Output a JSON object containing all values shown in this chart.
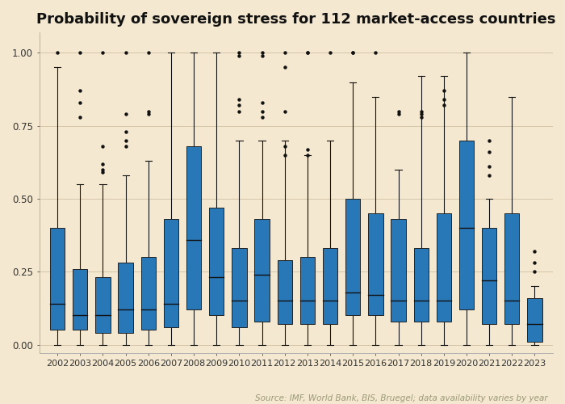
{
  "title": "Probability of sovereign stress for 112 market-access countries",
  "source_text": "Source: IMF, World Bank, BIS, Bruegel; data availability varies by year",
  "background_color": "#f5e8d0",
  "box_color": "#2878b8",
  "box_edge_color": "#222222",
  "median_color": "#111111",
  "whisker_color": "#111111",
  "flier_color": "#111111",
  "years": [
    2002,
    2003,
    2004,
    2005,
    2006,
    2007,
    2008,
    2009,
    2010,
    2011,
    2012,
    2013,
    2014,
    2015,
    2016,
    2017,
    2018,
    2019,
    2020,
    2021,
    2022,
    2023
  ],
  "box_stats": [
    {
      "year": 2002,
      "q1": 0.05,
      "median": 0.14,
      "q3": 0.4,
      "whislo": 0.0,
      "whishi": 0.95,
      "fliers": [
        1.0
      ]
    },
    {
      "year": 2003,
      "q1": 0.05,
      "median": 0.1,
      "q3": 0.26,
      "whislo": 0.0,
      "whishi": 0.55,
      "fliers": [
        1.0,
        0.87,
        0.83,
        0.78
      ]
    },
    {
      "year": 2004,
      "q1": 0.04,
      "median": 0.1,
      "q3": 0.23,
      "whislo": 0.0,
      "whishi": 0.55,
      "fliers": [
        1.0,
        0.68,
        0.62,
        0.6,
        0.59
      ]
    },
    {
      "year": 2005,
      "q1": 0.04,
      "median": 0.12,
      "q3": 0.28,
      "whislo": 0.0,
      "whishi": 0.58,
      "fliers": [
        1.0,
        0.79,
        0.73,
        0.7,
        0.68
      ]
    },
    {
      "year": 2006,
      "q1": 0.05,
      "median": 0.12,
      "q3": 0.3,
      "whislo": 0.0,
      "whishi": 0.63,
      "fliers": [
        1.0,
        0.8,
        0.79
      ]
    },
    {
      "year": 2007,
      "q1": 0.06,
      "median": 0.14,
      "q3": 0.43,
      "whislo": 0.0,
      "whishi": 1.0,
      "fliers": []
    },
    {
      "year": 2008,
      "q1": 0.12,
      "median": 0.36,
      "q3": 0.68,
      "whislo": 0.0,
      "whishi": 1.0,
      "fliers": []
    },
    {
      "year": 2009,
      "q1": 0.1,
      "median": 0.23,
      "q3": 0.47,
      "whislo": 0.0,
      "whishi": 1.0,
      "fliers": []
    },
    {
      "year": 2010,
      "q1": 0.06,
      "median": 0.15,
      "q3": 0.33,
      "whislo": 0.0,
      "whishi": 0.7,
      "fliers": [
        1.0,
        0.99,
        0.84,
        0.82,
        0.8
      ]
    },
    {
      "year": 2011,
      "q1": 0.08,
      "median": 0.24,
      "q3": 0.43,
      "whislo": 0.0,
      "whishi": 0.7,
      "fliers": [
        1.0,
        0.99,
        0.83,
        0.8,
        0.78
      ]
    },
    {
      "year": 2012,
      "q1": 0.07,
      "median": 0.15,
      "q3": 0.29,
      "whislo": 0.0,
      "whishi": 0.7,
      "fliers": [
        1.0,
        0.95,
        0.8,
        0.68,
        0.65
      ]
    },
    {
      "year": 2013,
      "q1": 0.07,
      "median": 0.15,
      "q3": 0.3,
      "whislo": 0.0,
      "whishi": 0.65,
      "fliers": [
        1.0,
        1.0,
        0.67,
        0.65
      ]
    },
    {
      "year": 2014,
      "q1": 0.07,
      "median": 0.15,
      "q3": 0.33,
      "whislo": 0.0,
      "whishi": 0.7,
      "fliers": [
        1.0
      ]
    },
    {
      "year": 2015,
      "q1": 0.1,
      "median": 0.18,
      "q3": 0.5,
      "whislo": 0.0,
      "whishi": 0.9,
      "fliers": [
        1.0,
        1.0
      ]
    },
    {
      "year": 2016,
      "q1": 0.1,
      "median": 0.17,
      "q3": 0.45,
      "whislo": 0.0,
      "whishi": 0.85,
      "fliers": [
        1.0
      ]
    },
    {
      "year": 2017,
      "q1": 0.08,
      "median": 0.15,
      "q3": 0.43,
      "whislo": 0.0,
      "whishi": 0.6,
      "fliers": [
        0.8,
        0.79
      ]
    },
    {
      "year": 2018,
      "q1": 0.08,
      "median": 0.15,
      "q3": 0.33,
      "whislo": 0.0,
      "whishi": 0.92,
      "fliers": [
        0.8,
        0.79,
        0.78
      ]
    },
    {
      "year": 2019,
      "q1": 0.08,
      "median": 0.15,
      "q3": 0.45,
      "whislo": 0.0,
      "whishi": 0.92,
      "fliers": [
        0.87,
        0.84,
        0.82
      ]
    },
    {
      "year": 2020,
      "q1": 0.12,
      "median": 0.4,
      "q3": 0.7,
      "whislo": 0.0,
      "whishi": 1.0,
      "fliers": []
    },
    {
      "year": 2021,
      "q1": 0.07,
      "median": 0.22,
      "q3": 0.4,
      "whislo": 0.0,
      "whishi": 0.5,
      "fliers": [
        0.7,
        0.66,
        0.61,
        0.58
      ]
    },
    {
      "year": 2022,
      "q1": 0.07,
      "median": 0.15,
      "q3": 0.45,
      "whislo": 0.0,
      "whishi": 0.85,
      "fliers": []
    },
    {
      "year": 2023,
      "q1": 0.01,
      "median": 0.07,
      "q3": 0.16,
      "whislo": 0.0,
      "whishi": 0.2,
      "fliers": [
        0.32,
        0.28,
        0.25
      ]
    }
  ],
  "ylim": [
    -0.03,
    1.07
  ],
  "yticks": [
    0.0,
    0.25,
    0.5,
    0.75,
    1.0
  ],
  "title_fontsize": 13,
  "tick_fontsize": 8.5,
  "source_fontsize": 7.5
}
